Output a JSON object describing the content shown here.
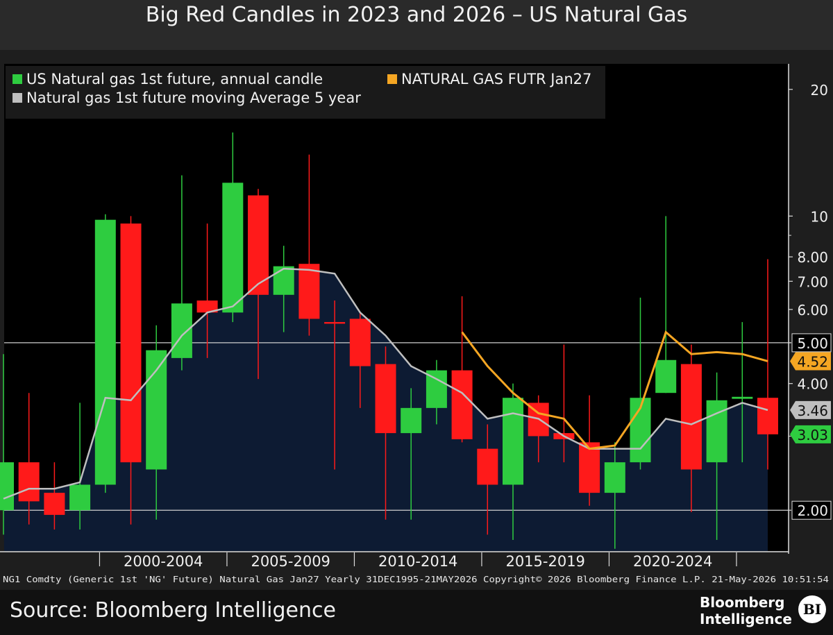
{
  "title": "Big Red Candles in 2023 and 2026 – US Natural Gas",
  "footer_text": "NG1 Comdty (Generic 1st 'NG' Future) Natural Gas Jan27 Yearly 31DEC1995-21MAY2026 Copyright© 2026 Bloomberg Finance L.P. 21-May-2026 10:51:54",
  "source": "Source: Bloomberg Intelligence",
  "brand": {
    "line1": "Bloomberg",
    "line2": "Intelligence",
    "badge": "BI"
  },
  "colors": {
    "up": "#2ecc40",
    "down": "#ff1a1a",
    "ma": "#bfbfbf",
    "futr": "#f5a623",
    "plot_bg": "#000000",
    "area": "#0d1b33",
    "legend_bg": "#1a1a1a"
  },
  "chart_data": {
    "type": "candlestick",
    "y_scale": "log",
    "ylim": [
      1.6,
      23
    ],
    "y_ticks": [
      "20",
      "10",
      "8.00",
      "7.00",
      "6.00",
      "4.00"
    ],
    "reference_lines": [
      5.0,
      2.0
    ],
    "reference_labels": [
      "5.00",
      "2.00"
    ],
    "last_value_labels": [
      {
        "text": "4.52",
        "value": 4.52,
        "color": "#f5a623"
      },
      {
        "text": "3.46",
        "value": 3.46,
        "color": "#bfbfbf"
      },
      {
        "text": "3.03",
        "value": 3.03,
        "color": "#2ecc40"
      }
    ],
    "x_ticks": [
      "2000-2004",
      "2005-2009",
      "2010-2014",
      "2015-2019",
      "2020-2024"
    ],
    "legend": [
      {
        "label": "US Natural gas 1st future, annual candle",
        "color": "#2ecc40"
      },
      {
        "label": "NATURAL GAS FUTR Jan27",
        "color": "#f5a623"
      },
      {
        "label": "Natural gas 1st future moving Average 5 year",
        "color": "#bfbfbf"
      }
    ],
    "candles": [
      {
        "year": 1995,
        "open": 2.0,
        "high": 4.7,
        "low": 1.75,
        "close": 2.6
      },
      {
        "year": 1996,
        "open": 2.6,
        "high": 3.8,
        "low": 1.85,
        "close": 2.1
      },
      {
        "year": 1997,
        "open": 2.2,
        "high": 2.6,
        "low": 1.8,
        "close": 1.95
      },
      {
        "year": 1998,
        "open": 2.0,
        "high": 3.6,
        "low": 1.8,
        "close": 2.3
      },
      {
        "year": 1999,
        "open": 2.3,
        "high": 10.1,
        "low": 2.2,
        "close": 9.8
      },
      {
        "year": 2000,
        "open": 9.6,
        "high": 10.0,
        "low": 1.85,
        "close": 2.6
      },
      {
        "year": 2001,
        "open": 2.5,
        "high": 5.5,
        "low": 1.9,
        "close": 4.8
      },
      {
        "year": 2002,
        "open": 4.6,
        "high": 12.5,
        "low": 4.3,
        "close": 6.2
      },
      {
        "year": 2003,
        "open": 6.3,
        "high": 9.6,
        "low": 4.6,
        "close": 5.9
      },
      {
        "year": 2004,
        "open": 5.9,
        "high": 15.8,
        "low": 5.6,
        "close": 12.0
      },
      {
        "year": 2005,
        "open": 11.2,
        "high": 11.6,
        "low": 4.1,
        "close": 6.5
      },
      {
        "year": 2006,
        "open": 6.5,
        "high": 8.5,
        "low": 5.3,
        "close": 7.6
      },
      {
        "year": 2007,
        "open": 7.7,
        "high": 14.0,
        "low": 5.2,
        "close": 5.7
      },
      {
        "year": 2008,
        "open": 5.6,
        "high": 6.3,
        "low": 2.5,
        "close": 5.55
      },
      {
        "year": 2009,
        "open": 5.7,
        "high": 5.9,
        "low": 3.5,
        "close": 4.4
      },
      {
        "year": 2010,
        "open": 4.45,
        "high": 4.9,
        "low": 1.9,
        "close": 3.05
      },
      {
        "year": 2011,
        "open": 3.05,
        "high": 3.9,
        "low": 1.9,
        "close": 3.5
      },
      {
        "year": 2012,
        "open": 3.5,
        "high": 4.55,
        "low": 3.2,
        "close": 4.3
      },
      {
        "year": 2013,
        "open": 4.3,
        "high": 6.45,
        "low": 2.9,
        "close": 2.95
      },
      {
        "year": 2014,
        "open": 2.8,
        "high": 3.2,
        "low": 1.75,
        "close": 2.3
      },
      {
        "year": 2015,
        "open": 2.3,
        "high": 4.0,
        "low": 1.7,
        "close": 3.7
      },
      {
        "year": 2016,
        "open": 3.6,
        "high": 3.75,
        "low": 2.6,
        "close": 3.0
      },
      {
        "year": 2017,
        "open": 3.05,
        "high": 4.95,
        "low": 2.6,
        "close": 2.95
      },
      {
        "year": 2018,
        "open": 2.9,
        "high": 3.75,
        "low": 2.05,
        "close": 2.2
      },
      {
        "year": 2019,
        "open": 2.2,
        "high": 2.9,
        "low": 1.62,
        "close": 2.6
      },
      {
        "year": 2020,
        "open": 2.6,
        "high": 6.4,
        "low": 2.5,
        "close": 3.7
      },
      {
        "year": 2021,
        "open": 3.8,
        "high": 10.0,
        "low": 3.8,
        "close": 4.55
      },
      {
        "year": 2022,
        "open": 4.45,
        "high": 4.95,
        "low": 1.98,
        "close": 2.5
      },
      {
        "year": 2023,
        "open": 2.6,
        "high": 4.25,
        "low": 1.7,
        "close": 3.65
      },
      {
        "year": 2024,
        "open": 3.68,
        "high": 5.6,
        "low": 2.6,
        "close": 3.72
      },
      {
        "year": 2025,
        "open": 3.7,
        "high": 7.9,
        "low": 2.5,
        "close": 3.03
      }
    ],
    "moving_average": [
      {
        "year": 1995,
        "value": 2.13
      },
      {
        "year": 1996,
        "value": 2.25
      },
      {
        "year": 1997,
        "value": 2.25
      },
      {
        "year": 1998,
        "value": 2.33
      },
      {
        "year": 1999,
        "value": 3.7
      },
      {
        "year": 2000,
        "value": 3.65
      },
      {
        "year": 2001,
        "value": 4.3
      },
      {
        "year": 2002,
        "value": 5.2
      },
      {
        "year": 2003,
        "value": 5.9
      },
      {
        "year": 2004,
        "value": 6.1
      },
      {
        "year": 2005,
        "value": 6.9
      },
      {
        "year": 2006,
        "value": 7.5
      },
      {
        "year": 2007,
        "value": 7.45
      },
      {
        "year": 2008,
        "value": 7.3
      },
      {
        "year": 2009,
        "value": 5.9
      },
      {
        "year": 2010,
        "value": 5.2
      },
      {
        "year": 2011,
        "value": 4.4
      },
      {
        "year": 2012,
        "value": 4.1
      },
      {
        "year": 2013,
        "value": 3.8
      },
      {
        "year": 2014,
        "value": 3.3
      },
      {
        "year": 2015,
        "value": 3.4
      },
      {
        "year": 2016,
        "value": 3.3
      },
      {
        "year": 2017,
        "value": 3.0
      },
      {
        "year": 2018,
        "value": 2.8
      },
      {
        "year": 2019,
        "value": 2.8
      },
      {
        "year": 2020,
        "value": 2.8
      },
      {
        "year": 2021,
        "value": 3.3
      },
      {
        "year": 2022,
        "value": 3.2
      },
      {
        "year": 2023,
        "value": 3.4
      },
      {
        "year": 2024,
        "value": 3.6
      },
      {
        "year": 2025,
        "value": 3.46
      }
    ],
    "futr_jan27": [
      {
        "year": 2013,
        "value": 5.3
      },
      {
        "year": 2014,
        "value": 4.4
      },
      {
        "year": 2015,
        "value": 3.8
      },
      {
        "year": 2016,
        "value": 3.4
      },
      {
        "year": 2017,
        "value": 3.3
      },
      {
        "year": 2018,
        "value": 2.8
      },
      {
        "year": 2019,
        "value": 2.85
      },
      {
        "year": 2020,
        "value": 3.5
      },
      {
        "year": 2021,
        "value": 5.3
      },
      {
        "year": 2022,
        "value": 4.7
      },
      {
        "year": 2023,
        "value": 4.75
      },
      {
        "year": 2024,
        "value": 4.7
      },
      {
        "year": 2025,
        "value": 4.52
      }
    ]
  }
}
